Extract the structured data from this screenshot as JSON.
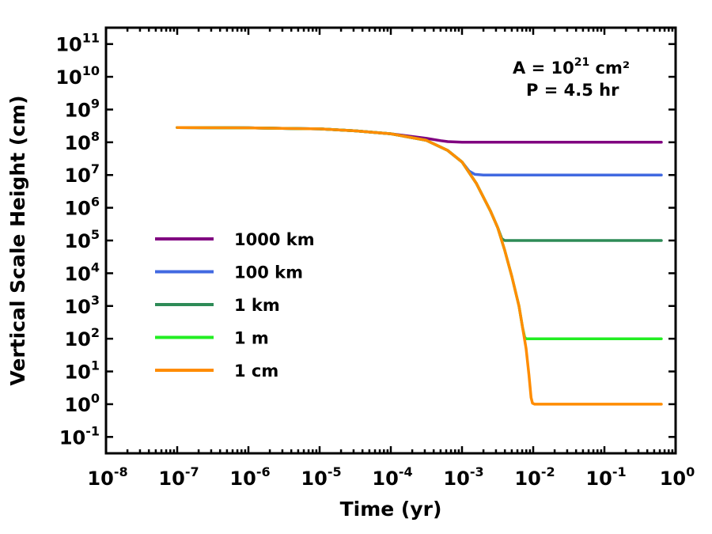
{
  "chart_data": {
    "type": "line",
    "xscale": "log",
    "yscale": "log",
    "xlabel": "Time (yr)",
    "ylabel": "Vertical Scale Height (cm)",
    "xlim_exp": [
      -8,
      0
    ],
    "ylim_exp": [
      -1.5,
      11.5
    ],
    "x_ticks": [
      {
        "base": "10",
        "exp": "-8"
      },
      {
        "base": "10",
        "exp": "-7"
      },
      {
        "base": "10",
        "exp": "-6"
      },
      {
        "base": "10",
        "exp": "-5"
      },
      {
        "base": "10",
        "exp": "-4"
      },
      {
        "base": "10",
        "exp": "-3"
      },
      {
        "base": "10",
        "exp": "-2"
      },
      {
        "base": "10",
        "exp": "-1"
      },
      {
        "base": "10",
        "exp": "0"
      }
    ],
    "y_ticks": [
      {
        "base": "10",
        "exp": "-1"
      },
      {
        "base": "10",
        "exp": "0"
      },
      {
        "base": "10",
        "exp": "1"
      },
      {
        "base": "10",
        "exp": "2"
      },
      {
        "base": "10",
        "exp": "3"
      },
      {
        "base": "10",
        "exp": "4"
      },
      {
        "base": "10",
        "exp": "5"
      },
      {
        "base": "10",
        "exp": "6"
      },
      {
        "base": "10",
        "exp": "7"
      },
      {
        "base": "10",
        "exp": "8"
      },
      {
        "base": "10",
        "exp": "9"
      },
      {
        "base": "10",
        "exp": "10"
      },
      {
        "base": "10",
        "exp": "11"
      }
    ],
    "annotation": {
      "line1_prefix": "A = 10",
      "line1_exp": "21",
      "line1_suffix": " cm²",
      "line2": "P = 4.5 hr"
    },
    "legend_position": "center-left",
    "series": [
      {
        "name": "1000 km",
        "color": "#800080",
        "log_points": [
          [
            -7,
            8.45
          ],
          [
            -6,
            8.44
          ],
          [
            -5,
            8.41
          ],
          [
            -4.5,
            8.35
          ],
          [
            -4,
            8.26
          ],
          [
            -3.5,
            8.12
          ],
          [
            -3.3,
            8.05
          ],
          [
            -3.2,
            8.02
          ],
          [
            -3,
            8.0
          ],
          [
            -2,
            8.0
          ],
          [
            -1,
            8.0
          ],
          [
            -0.2,
            8.0
          ]
        ]
      },
      {
        "name": "100 km",
        "color": "#4169E1",
        "log_points": [
          [
            -7,
            8.45
          ],
          [
            -6,
            8.44
          ],
          [
            -5,
            8.41
          ],
          [
            -4.5,
            8.35
          ],
          [
            -4,
            8.26
          ],
          [
            -3.5,
            8.06
          ],
          [
            -3.2,
            7.75
          ],
          [
            -3,
            7.4
          ],
          [
            -2.9,
            7.12
          ],
          [
            -2.82,
            7.02
          ],
          [
            -2.7,
            7.0
          ],
          [
            -2,
            7.0
          ],
          [
            -1,
            7.0
          ],
          [
            -0.2,
            7.0
          ]
        ]
      },
      {
        "name": "1 km",
        "color": "#2E8B57",
        "log_points": [
          [
            -7,
            8.45
          ],
          [
            -6,
            8.44
          ],
          [
            -5,
            8.41
          ],
          [
            -4.5,
            8.35
          ],
          [
            -4,
            8.26
          ],
          [
            -3.5,
            8.06
          ],
          [
            -3.2,
            7.75
          ],
          [
            -3,
            7.4
          ],
          [
            -2.8,
            6.75
          ],
          [
            -2.6,
            5.9
          ],
          [
            -2.5,
            5.4
          ],
          [
            -2.44,
            5.05
          ],
          [
            -2.4,
            5.0
          ],
          [
            -2,
            5.0
          ],
          [
            -1,
            5.0
          ],
          [
            -0.2,
            5.0
          ]
        ]
      },
      {
        "name": "1 m",
        "color": "#22EE22",
        "log_points": [
          [
            -7,
            8.45
          ],
          [
            -6,
            8.44
          ],
          [
            -5,
            8.41
          ],
          [
            -4.5,
            8.35
          ],
          [
            -4,
            8.26
          ],
          [
            -3.5,
            8.06
          ],
          [
            -3.2,
            7.75
          ],
          [
            -3,
            7.4
          ],
          [
            -2.8,
            6.75
          ],
          [
            -2.6,
            5.9
          ],
          [
            -2.5,
            5.4
          ],
          [
            -2.4,
            4.7
          ],
          [
            -2.3,
            3.9
          ],
          [
            -2.2,
            3.0
          ],
          [
            -2.15,
            2.35
          ],
          [
            -2.12,
            2.05
          ],
          [
            -2.1,
            2.0
          ],
          [
            -1,
            2.0
          ],
          [
            -0.2,
            2.0
          ]
        ]
      },
      {
        "name": "1 cm",
        "color": "#FF8C00",
        "log_points": [
          [
            -7,
            8.45
          ],
          [
            -6,
            8.44
          ],
          [
            -5,
            8.41
          ],
          [
            -4.5,
            8.35
          ],
          [
            -4,
            8.26
          ],
          [
            -3.5,
            8.06
          ],
          [
            -3.2,
            7.75
          ],
          [
            -3,
            7.4
          ],
          [
            -2.8,
            6.75
          ],
          [
            -2.6,
            5.9
          ],
          [
            -2.5,
            5.4
          ],
          [
            -2.4,
            4.7
          ],
          [
            -2.3,
            3.9
          ],
          [
            -2.2,
            3.0
          ],
          [
            -2.15,
            2.35
          ],
          [
            -2.1,
            1.7
          ],
          [
            -2.06,
            0.9
          ],
          [
            -2.03,
            0.2
          ],
          [
            -2.01,
            0.03
          ],
          [
            -1.98,
            0.0
          ],
          [
            -1,
            0.0
          ],
          [
            -0.2,
            0.0
          ]
        ]
      }
    ]
  }
}
